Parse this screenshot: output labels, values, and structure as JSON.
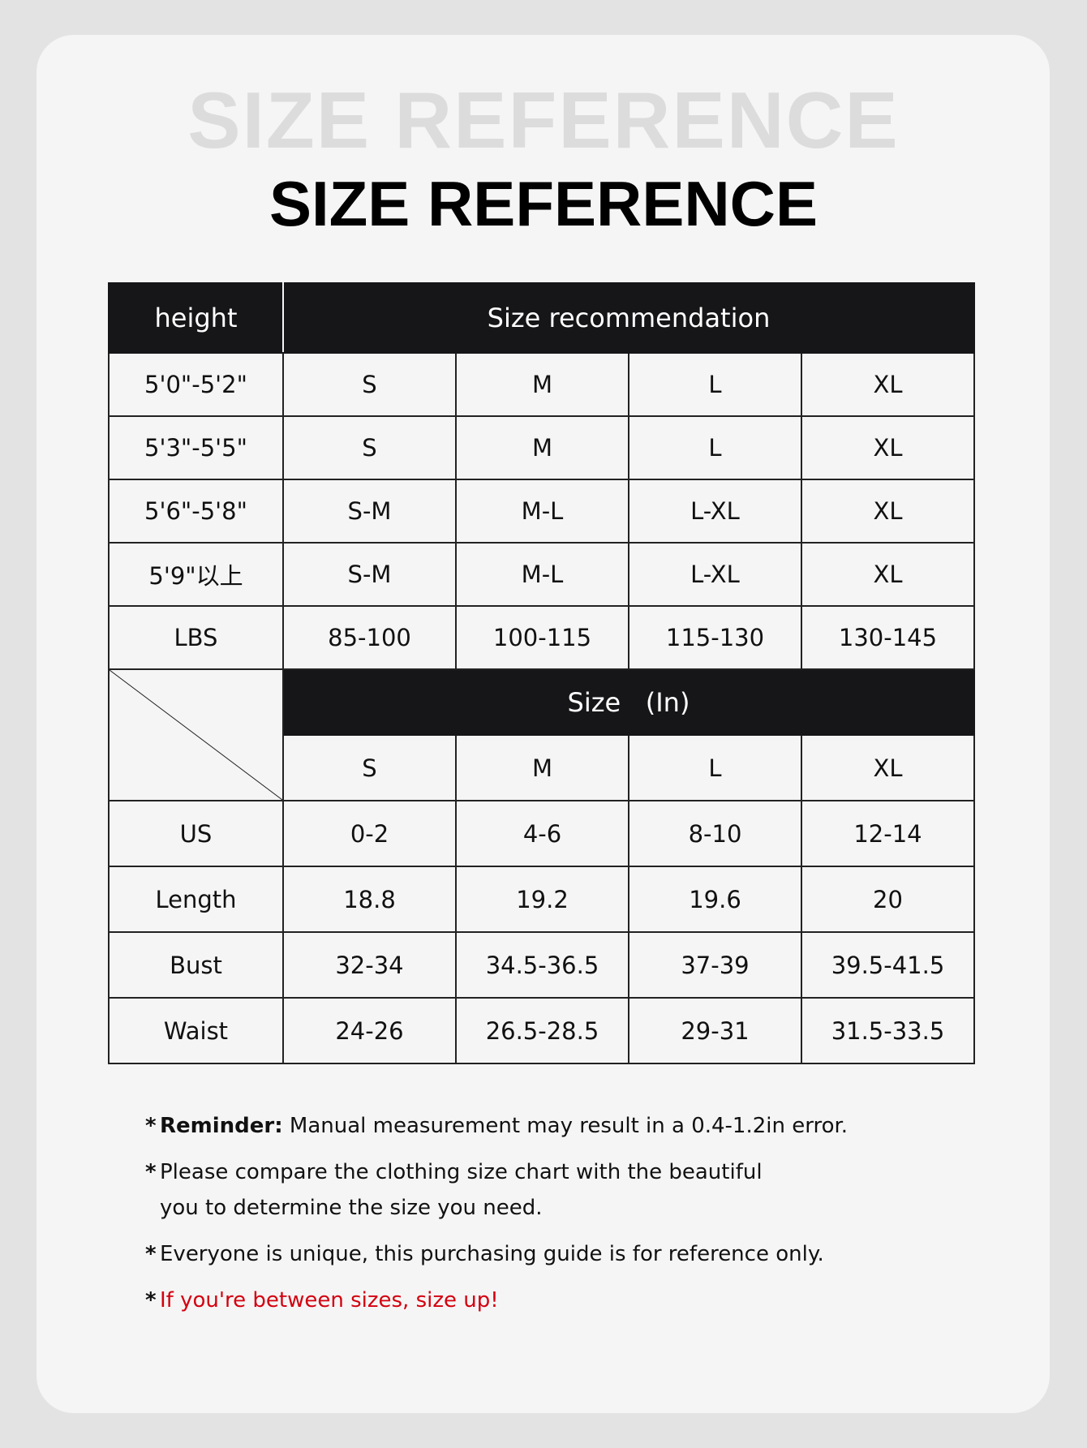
{
  "title": "SIZE REFERENCE",
  "title_ghost": "SIZE REFERENCE",
  "table": {
    "header_height": "height",
    "header_recommendation": "Size recommendation",
    "height_rows": [
      {
        "label": "5'0\"-5'2\"",
        "values": [
          "S",
          "M",
          "L",
          "XL"
        ]
      },
      {
        "label": "5'3\"-5'5\"",
        "values": [
          "S",
          "M",
          "L",
          "XL"
        ]
      },
      {
        "label": "5'6\"-5'8\"",
        "values": [
          "S-M",
          "M-L",
          "L-XL",
          "XL"
        ]
      },
      {
        "label": "5'9\"以上",
        "values": [
          "S-M",
          "M-L",
          "L-XL",
          "XL"
        ]
      },
      {
        "label": "LBS",
        "values": [
          "85-100",
          "100-115",
          "115-130",
          "130-145"
        ]
      }
    ],
    "size_header": "Size   (In)",
    "sizes": [
      "S",
      "M",
      "L",
      "XL"
    ],
    "measure_rows": [
      {
        "label": "US",
        "values": [
          "0-2",
          "4-6",
          "8-10",
          "12-14"
        ]
      },
      {
        "label": "Length",
        "values": [
          "18.8",
          "19.2",
          "19.6",
          "20"
        ]
      },
      {
        "label": "Bust",
        "values": [
          "32-34",
          "34.5-36.5",
          "37-39",
          "39.5-41.5"
        ]
      },
      {
        "label": "Waist",
        "values": [
          "24-26",
          "26.5-28.5",
          "29-31",
          "31.5-33.5"
        ]
      }
    ]
  },
  "notes": {
    "bullet": "*",
    "reminder_label": "Reminder:",
    "reminder_text": " Manual measurement may result in a 0.4-1.2in error.",
    "compare": "Please compare the clothing size chart with the beautiful you to determine the size you need.",
    "unique": "Everyone is unique, this purchasing guide is for reference only.",
    "size_up": "If you're between sizes, size up!"
  },
  "colors": {
    "header_bg": "#161618",
    "accent_red": "#d3000f",
    "card_bg": "#f5f5f5",
    "page_bg": "#e3e3e3"
  }
}
